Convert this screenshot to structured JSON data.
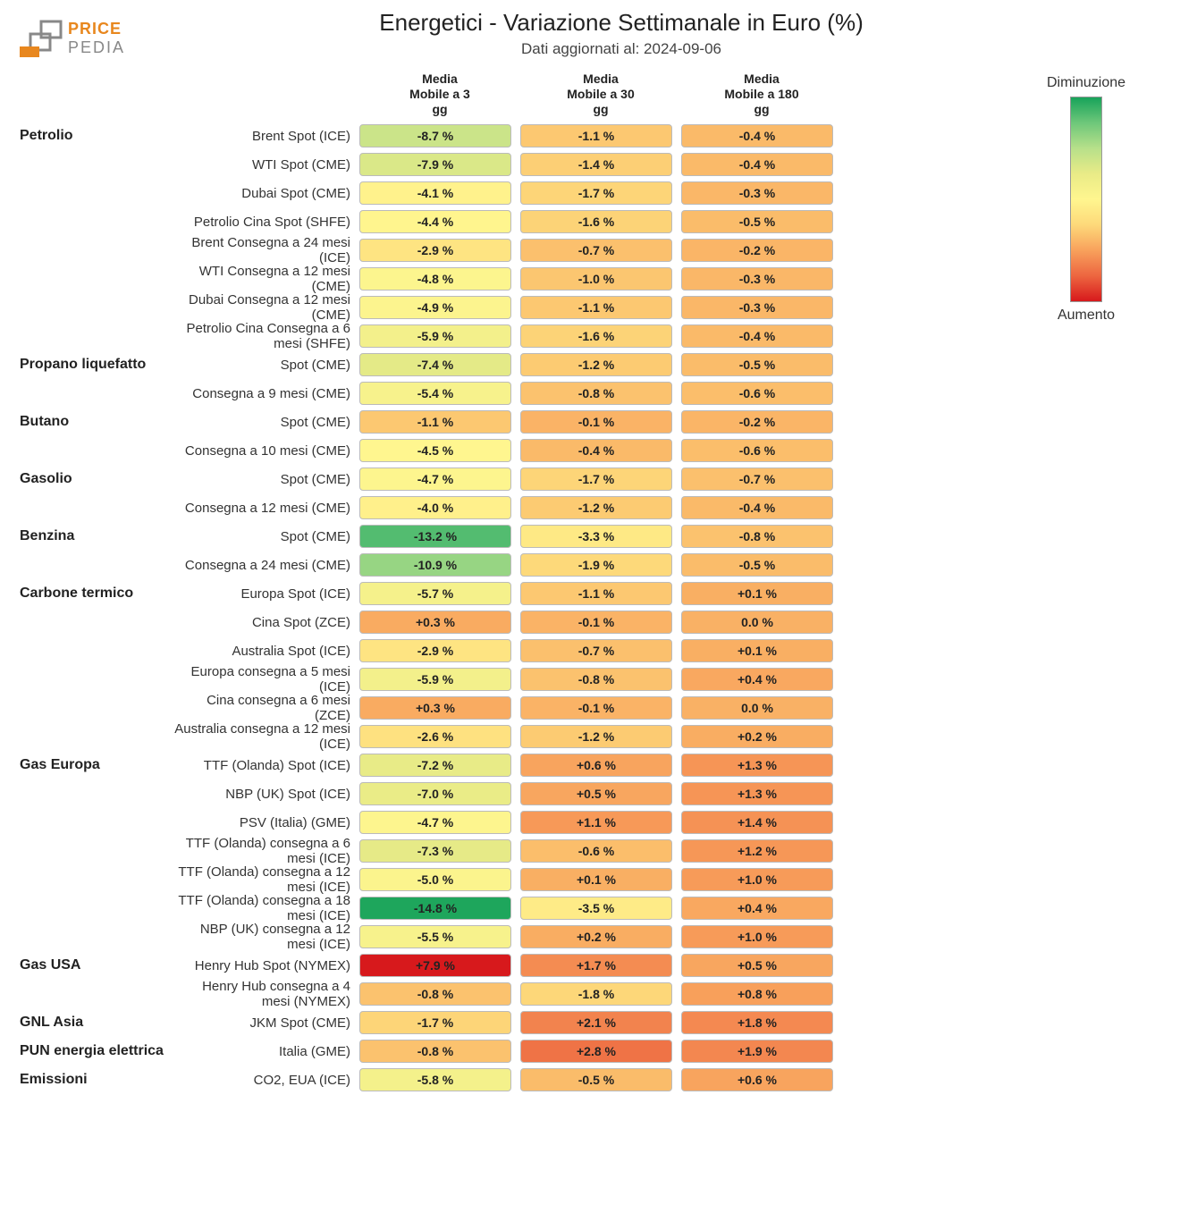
{
  "title": "Energetici - Variazione Settimanale in Euro (%)",
  "subtitle": "Dati aggiornati al: 2024-09-06",
  "logo": {
    "brand_top": "PRICE",
    "brand_bot": "PEDIA",
    "accent": "#e8871e",
    "muted": "#888888"
  },
  "column_headers": [
    "Media\nMobile a 3\ngg",
    "Media\nMobile a 30\ngg",
    "Media\nMobile a 180\ngg"
  ],
  "legend": {
    "top_label": "Diminuzione",
    "bottom_label": "Aumento",
    "gradient_stops": [
      "#17a35a",
      "#6ec77a",
      "#b7e08a",
      "#e9eb87",
      "#fff68f",
      "#fdd97a",
      "#f8a15c",
      "#ed6640",
      "#d7191c"
    ]
  },
  "heatmap": {
    "color_scale_domain": [
      -15,
      6
    ],
    "color_scale_range": [
      "#17a35a",
      "#6ec77a",
      "#b7e08a",
      "#e9eb87",
      "#fff68f",
      "#fdd97a",
      "#f8a15c",
      "#ed6640",
      "#d7191c"
    ],
    "cell_border_color": "#bbbbbb",
    "text_color": "#222222",
    "font_size_cell": 14
  },
  "rows": [
    {
      "category": "Petrolio",
      "label": "Brent Spot (ICE)",
      "values": [
        -8.7,
        -1.1,
        -0.4
      ]
    },
    {
      "category": "",
      "label": "WTI Spot (CME)",
      "values": [
        -7.9,
        -1.4,
        -0.4
      ]
    },
    {
      "category": "",
      "label": "Dubai Spot (CME)",
      "values": [
        -4.1,
        -1.7,
        -0.3
      ]
    },
    {
      "category": "",
      "label": "Petrolio Cina Spot (SHFE)",
      "values": [
        -4.4,
        -1.6,
        -0.5
      ]
    },
    {
      "category": "",
      "label": "Brent Consegna a 24 mesi (ICE)",
      "values": [
        -2.9,
        -0.7,
        -0.2
      ]
    },
    {
      "category": "",
      "label": "WTI Consegna a 12 mesi (CME)",
      "values": [
        -4.8,
        -1.0,
        -0.3
      ]
    },
    {
      "category": "",
      "label": "Dubai Consegna a 12 mesi (CME)",
      "values": [
        -4.9,
        -1.1,
        -0.3
      ]
    },
    {
      "category": "",
      "label": "Petrolio Cina Consegna a 6 mesi (SHFE)",
      "values": [
        -5.9,
        -1.6,
        -0.4
      ]
    },
    {
      "category": "Propano liquefatto",
      "label": "Spot (CME)",
      "values": [
        -7.4,
        -1.2,
        -0.5
      ]
    },
    {
      "category": "",
      "label": "Consegna a 9 mesi (CME)",
      "values": [
        -5.4,
        -0.8,
        -0.6
      ]
    },
    {
      "category": "Butano",
      "label": "Spot (CME)",
      "values": [
        -1.1,
        -0.1,
        -0.2
      ]
    },
    {
      "category": "",
      "label": "Consegna a 10 mesi (CME)",
      "values": [
        -4.5,
        -0.4,
        -0.6
      ]
    },
    {
      "category": "Gasolio",
      "label": "Spot (CME)",
      "values": [
        -4.7,
        -1.7,
        -0.7
      ]
    },
    {
      "category": "",
      "label": "Consegna a 12 mesi (CME)",
      "values": [
        -4.0,
        -1.2,
        -0.4
      ]
    },
    {
      "category": "Benzina",
      "label": "Spot (CME)",
      "values": [
        -13.2,
        -3.3,
        -0.8
      ]
    },
    {
      "category": "",
      "label": "Consegna a 24 mesi (CME)",
      "values": [
        -10.9,
        -1.9,
        -0.5
      ]
    },
    {
      "category": "Carbone termico",
      "label": "Europa Spot (ICE)",
      "values": [
        -5.7,
        -1.1,
        0.1
      ]
    },
    {
      "category": "",
      "label": "Cina Spot (ZCE)",
      "values": [
        0.3,
        -0.1,
        0.0
      ]
    },
    {
      "category": "",
      "label": "Australia Spot (ICE)",
      "values": [
        -2.9,
        -0.7,
        0.1
      ]
    },
    {
      "category": "",
      "label": "Europa consegna a 5 mesi (ICE)",
      "values": [
        -5.9,
        -0.8,
        0.4
      ]
    },
    {
      "category": "",
      "label": "Cina consegna a 6 mesi (ZCE)",
      "values": [
        0.3,
        -0.1,
        0.0
      ]
    },
    {
      "category": "",
      "label": "Australia consegna a 12 mesi (ICE)",
      "values": [
        -2.6,
        -1.2,
        0.2
      ]
    },
    {
      "category": "Gas Europa",
      "label": "TTF (Olanda) Spot (ICE)",
      "values": [
        -7.2,
        0.6,
        1.3
      ]
    },
    {
      "category": "",
      "label": "NBP (UK) Spot (ICE)",
      "values": [
        -7.0,
        0.5,
        1.3
      ]
    },
    {
      "category": "",
      "label": "PSV (Italia) (GME)",
      "values": [
        -4.7,
        1.1,
        1.4
      ]
    },
    {
      "category": "",
      "label": "TTF (Olanda) consegna a 6 mesi (ICE)",
      "values": [
        -7.3,
        -0.6,
        1.2
      ]
    },
    {
      "category": "",
      "label": "TTF (Olanda) consegna a 12 mesi (ICE)",
      "values": [
        -5.0,
        0.1,
        1.0
      ]
    },
    {
      "category": "",
      "label": "TTF (Olanda) consegna a 18 mesi (ICE)",
      "values": [
        -14.8,
        -3.5,
        0.4
      ]
    },
    {
      "category": "",
      "label": "NBP (UK) consegna a 12 mesi (ICE)",
      "values": [
        -5.5,
        0.2,
        1.0
      ]
    },
    {
      "category": "Gas USA",
      "label": "Henry Hub Spot (NYMEX)",
      "values": [
        7.9,
        1.7,
        0.5
      ]
    },
    {
      "category": "",
      "label": "Henry Hub consegna a 4 mesi (NYMEX)",
      "values": [
        -0.8,
        -1.8,
        0.8
      ]
    },
    {
      "category": "GNL Asia",
      "label": "JKM Spot (CME)",
      "values": [
        -1.7,
        2.1,
        1.8
      ]
    },
    {
      "category": "PUN energia elettrica",
      "label": "Italia (GME)",
      "values": [
        -0.8,
        2.8,
        1.9
      ]
    },
    {
      "category": "Emissioni",
      "label": "CO2, EUA (ICE)",
      "values": [
        -5.8,
        -0.5,
        0.6
      ]
    }
  ]
}
